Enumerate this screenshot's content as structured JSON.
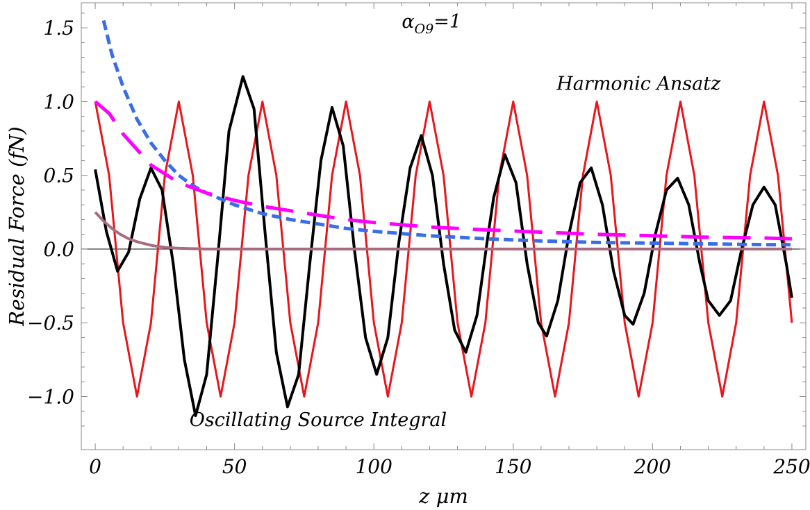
{
  "chart_data": {
    "type": "line",
    "xlabel": "z μm",
    "ylabel": "Residual Force (fN)",
    "xlim": [
      -5,
      255
    ],
    "ylim": [
      -1.36,
      1.67
    ],
    "xticks": [
      0,
      50,
      100,
      150,
      200,
      250
    ],
    "xtick_labels": [
      "0",
      "50",
      "100",
      "150",
      "200",
      "250"
    ],
    "yticks": [
      -1.0,
      -0.5,
      0.0,
      0.5,
      1.0,
      1.5
    ],
    "ytick_labels": [
      "−1.0",
      "−0.5",
      "0.0",
      "0.5",
      "1.0",
      "1.5"
    ],
    "grid": false,
    "annotations": [
      {
        "text": "Harmonic Ansatz",
        "x": 195,
        "y": 1.08
      },
      {
        "text": "Oscillating Source Integral",
        "x": 80,
        "y": -1.2
      }
    ],
    "alpha_label": {
      "symbol": "α",
      "subscript": "O9",
      "suffix": "=1",
      "x": 110,
      "y": 1.5
    },
    "series": [
      {
        "style": "solid-thin",
        "color": "#e8161c",
        "x": [
          0,
          5,
          10,
          15,
          20,
          25,
          30,
          35,
          40,
          45,
          50,
          55,
          60,
          65,
          70,
          75,
          80,
          85,
          90,
          95,
          100,
          105,
          110,
          115,
          120,
          125,
          130,
          135,
          140,
          145,
          150,
          155,
          160,
          165,
          170,
          175,
          180,
          185,
          190,
          195,
          200,
          205,
          210,
          215,
          220,
          225,
          230,
          235,
          240,
          245,
          250
        ],
        "y": [
          1.0,
          0.5,
          -0.5,
          -1.0,
          -0.5,
          0.5,
          1.0,
          0.5,
          -0.5,
          -1.0,
          -0.5,
          0.5,
          1.0,
          0.5,
          -0.5,
          -1.0,
          -0.5,
          0.5,
          1.0,
          0.5,
          -0.5,
          -1.0,
          -0.5,
          0.5,
          1.0,
          0.5,
          -0.5,
          -1.0,
          -0.5,
          0.5,
          1.0,
          0.5,
          -0.5,
          -1.0,
          -0.5,
          0.5,
          1.0,
          0.5,
          -0.5,
          -1.0,
          -0.5,
          0.5,
          1.0,
          0.5,
          -0.5,
          -1.0,
          -0.5,
          0.5,
          1.0,
          0.5,
          -0.5
        ]
      },
      {
        "style": "solid-thick",
        "color": "#000000",
        "x": [
          0,
          4,
          8,
          12,
          16,
          20,
          24,
          28,
          32,
          36,
          40,
          44,
          48,
          53,
          57,
          61,
          65,
          69,
          73,
          77,
          81,
          85,
          89,
          93,
          97,
          101,
          105,
          109,
          113,
          117,
          121,
          125,
          129,
          133,
          137,
          141,
          143,
          147,
          151,
          155,
          159,
          162,
          166,
          170,
          174,
          178,
          182,
          186,
          190,
          193,
          197,
          201,
          205,
          209,
          213,
          217,
          220,
          224,
          228,
          232,
          236,
          240,
          244,
          248,
          250
        ],
        "y": [
          0.54,
          0.12,
          -0.15,
          -0.02,
          0.34,
          0.55,
          0.4,
          -0.1,
          -0.75,
          -1.13,
          -0.85,
          -0.05,
          0.8,
          1.17,
          0.95,
          0.1,
          -0.7,
          -1.07,
          -0.85,
          -0.1,
          0.6,
          0.96,
          0.7,
          0.0,
          -0.6,
          -0.85,
          -0.6,
          0.05,
          0.55,
          0.77,
          0.5,
          -0.1,
          -0.55,
          -0.7,
          -0.45,
          0.1,
          0.35,
          0.64,
          0.45,
          -0.1,
          -0.5,
          -0.59,
          -0.35,
          0.1,
          0.45,
          0.55,
          0.3,
          -0.15,
          -0.45,
          -0.51,
          -0.3,
          0.1,
          0.4,
          0.48,
          0.3,
          -0.1,
          -0.35,
          -0.45,
          -0.35,
          0.0,
          0.3,
          0.42,
          0.3,
          -0.1,
          -0.33
        ]
      },
      {
        "style": "short-dash",
        "color": "#3a6ee8",
        "x": [
          3,
          6,
          10,
          15,
          20,
          25,
          30,
          35,
          40,
          50,
          60,
          70,
          80,
          90,
          100,
          120,
          140,
          160,
          180,
          200,
          220,
          240,
          250
        ],
        "y": [
          1.55,
          1.32,
          1.1,
          0.88,
          0.72,
          0.6,
          0.5,
          0.43,
          0.38,
          0.3,
          0.24,
          0.2,
          0.17,
          0.14,
          0.12,
          0.09,
          0.07,
          0.055,
          0.045,
          0.04,
          0.035,
          0.03,
          0.03
        ]
      },
      {
        "style": "long-dash",
        "color": "#ff00ff",
        "x": [
          0,
          5,
          10,
          20,
          30,
          40,
          50,
          60,
          70,
          80,
          90,
          100,
          120,
          140,
          160,
          180,
          200,
          220,
          240,
          250
        ],
        "y": [
          1.0,
          0.92,
          0.78,
          0.57,
          0.45,
          0.38,
          0.33,
          0.29,
          0.26,
          0.23,
          0.2,
          0.18,
          0.15,
          0.13,
          0.115,
          0.1,
          0.09,
          0.08,
          0.075,
          0.07
        ]
      },
      {
        "style": "solid-thick",
        "color": "#a86b7f",
        "x": [
          0,
          3,
          6,
          9,
          12,
          15,
          18,
          21,
          25,
          30,
          40,
          60,
          100,
          150,
          200,
          250
        ],
        "y": [
          0.25,
          0.19,
          0.14,
          0.1,
          0.07,
          0.05,
          0.035,
          0.022,
          0.012,
          0.005,
          0.0,
          0.0,
          0.0,
          0.0,
          0.0,
          0.0
        ]
      }
    ]
  }
}
